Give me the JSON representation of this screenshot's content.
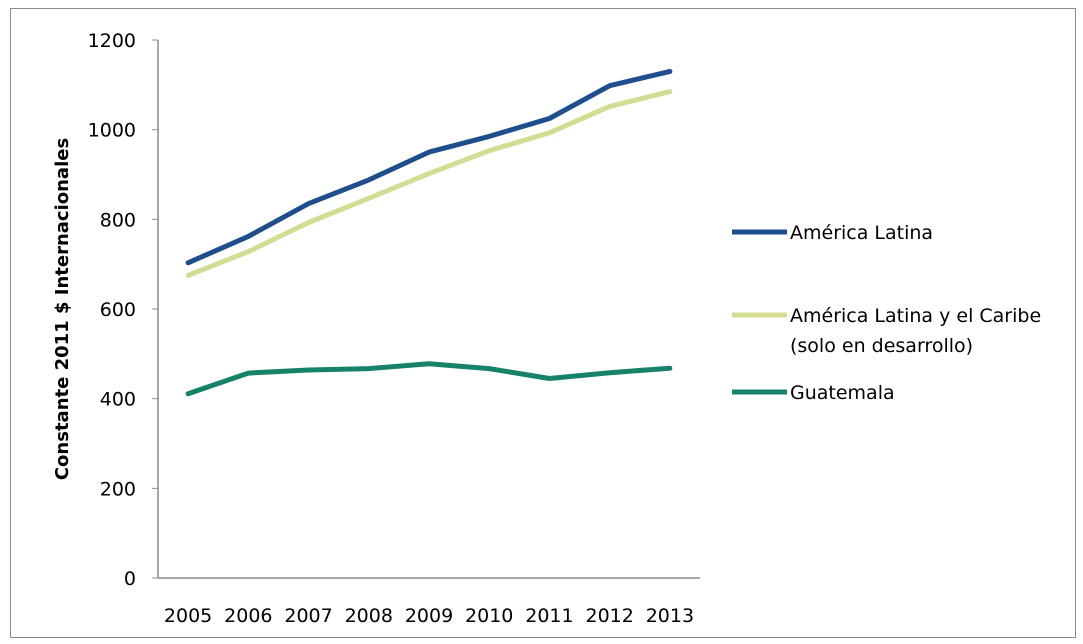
{
  "chart_data": {
    "type": "line",
    "title": "",
    "xlabel": "",
    "ylabel": "Constante 2011 $ Internacionales",
    "x": [
      "2005",
      "2006",
      "2007",
      "2008",
      "2009",
      "2010",
      "2011",
      "2012",
      "2013"
    ],
    "ylim": [
      0,
      1200
    ],
    "yticks": [
      "0",
      "200",
      "400",
      "600",
      "800",
      "1000",
      "1200"
    ],
    "grid": false,
    "legend_position": "right",
    "series": [
      {
        "name": "América Latina",
        "name_lines": [
          "América Latina"
        ],
        "color": "#1f4e8c",
        "values": [
          703,
          762,
          835,
          888,
          950,
          985,
          1025,
          1098,
          1130
        ]
      },
      {
        "name": "América Latina y el Caribe (solo en desarrollo)",
        "name_lines": [
          "América Latina y el Caribe",
          "(solo en desarrollo)"
        ],
        "color": "#d4dc94",
        "values": [
          675,
          728,
          793,
          847,
          902,
          953,
          993,
          1052,
          1085
        ]
      },
      {
        "name": "Guatemala",
        "name_lines": [
          "Guatemala"
        ],
        "color": "#17826a",
        "values": [
          411,
          457,
          464,
          467,
          478,
          467,
          445,
          458,
          468
        ]
      }
    ]
  }
}
